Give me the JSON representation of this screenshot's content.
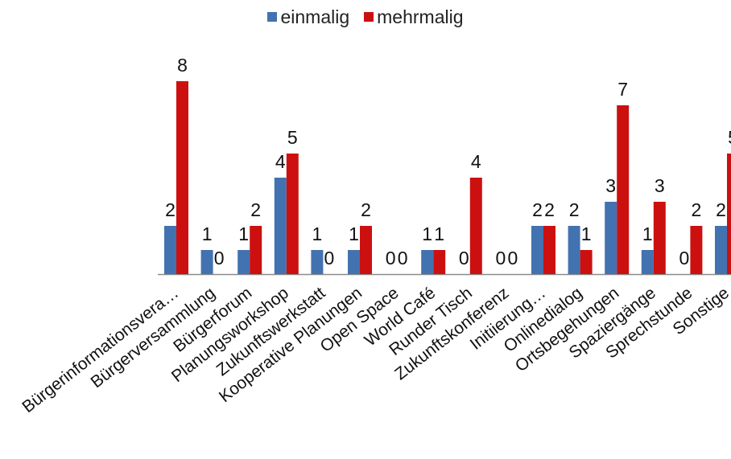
{
  "chart_data": {
    "type": "bar",
    "categories": [
      "Bürgerinformationsvera…",
      "Bürgerversammlung",
      "Bürgerforum",
      "Planungsworkshop",
      "Zukunftswerkstatt",
      "Kooperative Planungen",
      "Open Space",
      "World Café",
      "Runder Tisch",
      "Zukunftskonferenz",
      "Initiierung…",
      "Onlinedialog",
      "Ortsbegehungen",
      "Spaziergänge",
      "Sprechstunde",
      "Sonstige"
    ],
    "series": [
      {
        "name": "einmalig",
        "color": "#4372b0",
        "values": [
          2,
          1,
          1,
          4,
          1,
          1,
          0,
          1,
          0,
          0,
          2,
          2,
          3,
          1,
          0,
          2
        ]
      },
      {
        "name": "mehrmalig",
        "color": "#cc1010",
        "values": [
          8,
          0,
          2,
          5,
          0,
          2,
          0,
          1,
          4,
          0,
          2,
          1,
          7,
          3,
          2,
          5
        ]
      }
    ],
    "ylim": [
      0,
      9
    ],
    "legend_position": "top-center",
    "grid": false
  }
}
